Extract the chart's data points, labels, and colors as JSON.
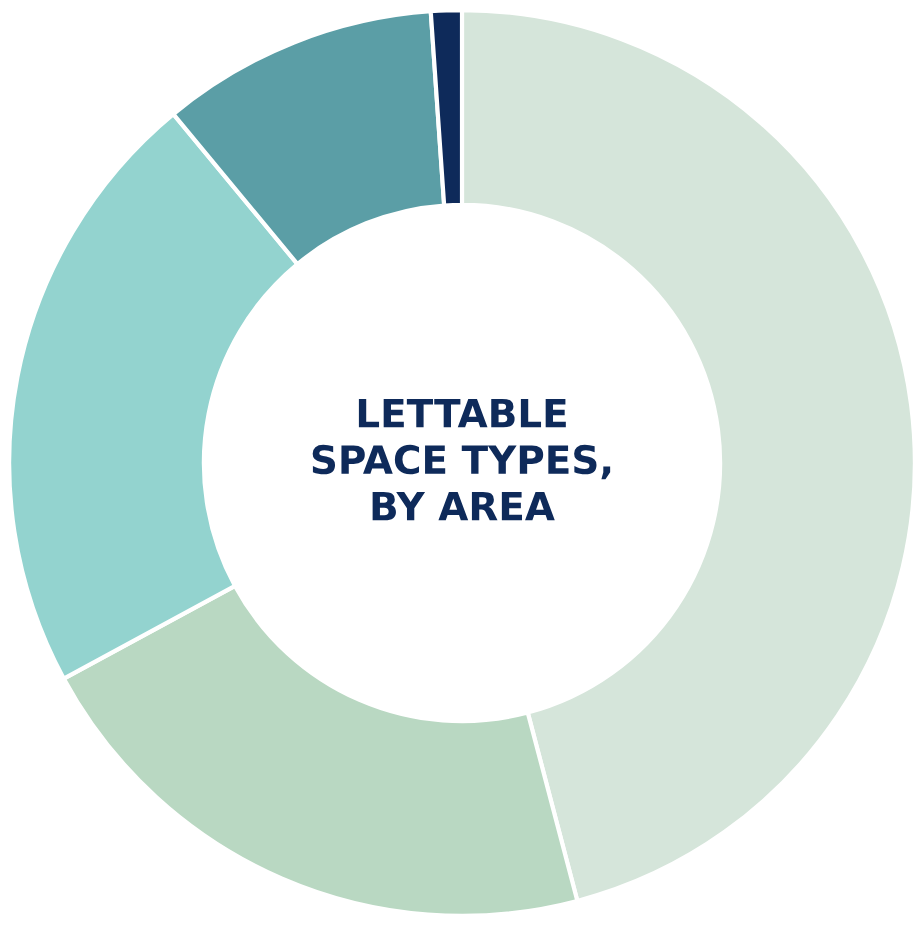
{
  "chart_data": {
    "type": "donut",
    "title": "LETTABLE\nSPACE TYPES,\nBY AREA",
    "categories": [
      null,
      null,
      null,
      null,
      null
    ],
    "values": [
      45.9,
      21.2,
      21.9,
      9.9,
      1.1
    ],
    "colors": [
      "#d5e5da",
      "#b9d8c2",
      "#93d3cf",
      "#5b9ea6",
      "#0e2a5a"
    ]
  }
}
